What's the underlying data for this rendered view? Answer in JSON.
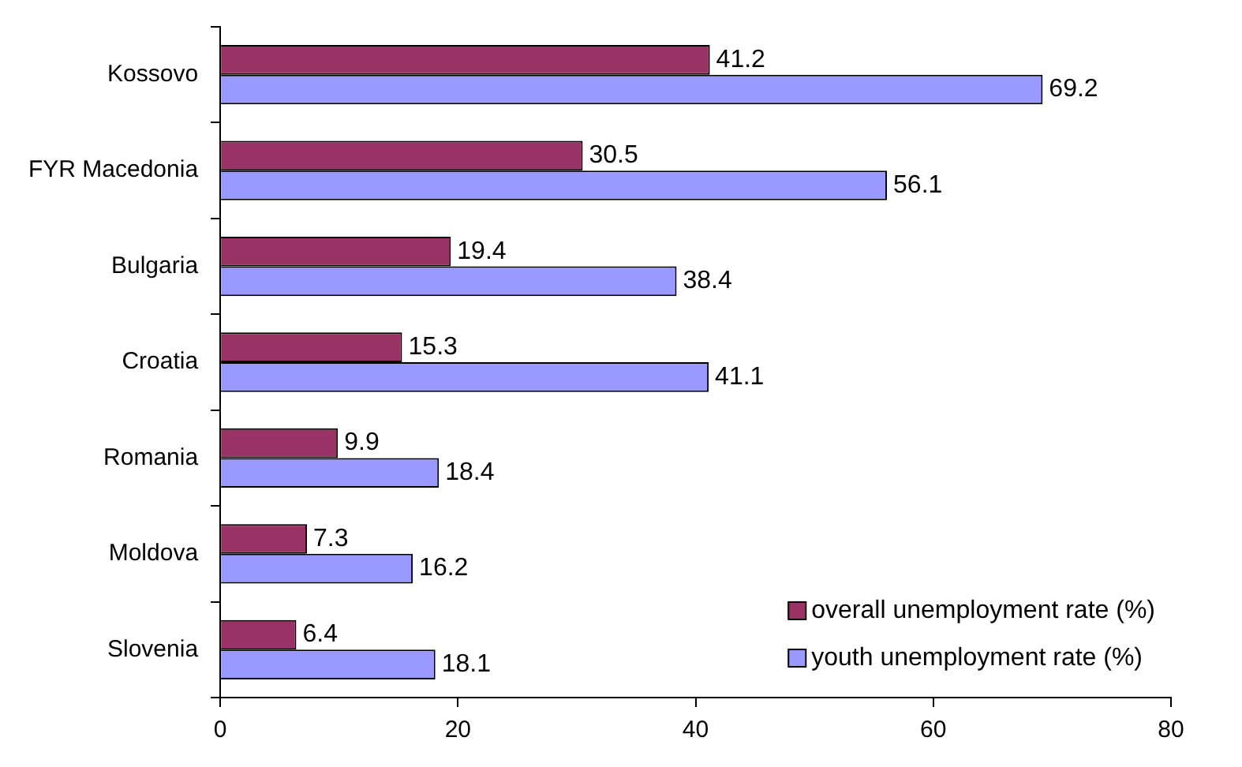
{
  "chart_data": {
    "type": "bar",
    "orientation": "horizontal",
    "categories": [
      "Kossovo",
      "FYR Macedonia",
      "Bulgaria",
      "Croatia",
      "Romania",
      "Moldova",
      "Slovenia"
    ],
    "series": [
      {
        "name": "overall unemployment rate (%)",
        "color": "#993366",
        "values": [
          41.2,
          30.5,
          19.4,
          15.3,
          9.9,
          7.3,
          6.4
        ]
      },
      {
        "name": "youth unemployment rate (%)",
        "color": "#9999ff",
        "values": [
          69.2,
          56.1,
          38.4,
          41.1,
          18.4,
          16.2,
          18.1
        ]
      }
    ],
    "xlim": [
      0,
      80
    ],
    "xticks": [
      0,
      20,
      40,
      60,
      80
    ],
    "grid": false,
    "legend": "bottom right",
    "data_labels": true
  }
}
